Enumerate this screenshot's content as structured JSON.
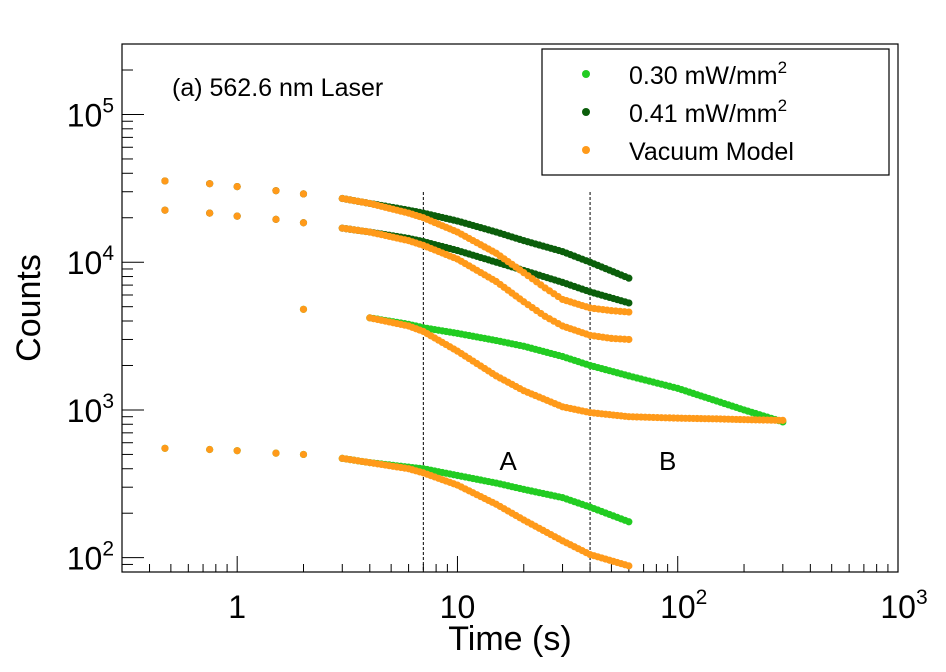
{
  "chart_data": {
    "type": "scatter",
    "title": "(a) 562.6 nm Laser",
    "xlabel": "Time (s)",
    "ylabel": "Counts",
    "xscale": "log",
    "yscale": "log",
    "xlim": [
      0.3,
      1000
    ],
    "ylim": [
      80,
      300000
    ],
    "x_ticks": [
      {
        "value": 1,
        "base": "1",
        "exp": ""
      },
      {
        "value": 10,
        "base": "10",
        "exp": ""
      },
      {
        "value": 100,
        "base": "10",
        "exp": "2"
      },
      {
        "value": 1000,
        "base": "10",
        "exp": "3"
      }
    ],
    "y_ticks": [
      {
        "value": 100,
        "base": "10",
        "exp": "2"
      },
      {
        "value": 1000,
        "base": "10",
        "exp": "3"
      },
      {
        "value": 10000,
        "base": "10",
        "exp": "4"
      },
      {
        "value": 100000,
        "base": "10",
        "exp": "5"
      }
    ],
    "legend": {
      "placement": "top-right",
      "entries": [
        {
          "label": "0.30 mW/mm",
          "sup": "2",
          "color": "#22cc22"
        },
        {
          "label": "0.41 mW/mm",
          "sup": "2",
          "color": "#0b5e0b"
        },
        {
          "label": "Vacuum Model",
          "sup": "",
          "color": "#ff9a1a"
        }
      ]
    },
    "vlines": [
      7,
      40
    ],
    "annotations": [
      {
        "text": "A",
        "x": 17,
        "y": 470
      },
      {
        "text": "B",
        "x": 90,
        "y": 470
      }
    ],
    "series": [
      {
        "name": "0.30 mW/mm²",
        "color": "#22cc22",
        "curves": [
          {
            "x": [
              2,
              4,
              6,
              7,
              10,
              15,
              20,
              30,
              40,
              60,
              100,
              150,
              200,
              300
            ],
            "y": [
              4800,
              4200,
              3800,
              3600,
              3300,
              2950,
              2700,
              2300,
              2000,
              1700,
              1400,
              1150,
              1000,
              830
            ]
          },
          {
            "x": [
              0.47,
              0.75,
              1,
              1.5,
              2,
              3,
              4,
              6,
              7,
              10,
              15,
              20,
              30,
              40,
              60
            ],
            "y": [
              550,
              540,
              530,
              510,
              500,
              470,
              440,
              410,
              400,
              360,
              320,
              290,
              255,
              220,
              175
            ]
          }
        ]
      },
      {
        "name": "0.41 mW/mm²",
        "color": "#0b5e0b",
        "curves": [
          {
            "x": [
              0.47,
              0.75,
              1,
              1.5,
              2,
              3,
              4,
              6,
              7,
              10,
              15,
              20,
              30,
              40,
              60
            ],
            "y": [
              35500,
              34000,
              32500,
              30500,
              29000,
              27000,
              25000,
              22500,
              21500,
              19000,
              16000,
              14000,
              11800,
              10000,
              7800
            ]
          },
          {
            "x": [
              0.47,
              0.75,
              1,
              1.5,
              2,
              3,
              4,
              6,
              7,
              10,
              15,
              20,
              30,
              40,
              60
            ],
            "y": [
              22500,
              21500,
              20500,
              19500,
              18500,
              17000,
              16000,
              14500,
              13800,
              12000,
              10000,
              8800,
              7300,
              6300,
              5300
            ]
          }
        ]
      },
      {
        "name": "Vacuum Model",
        "color": "#ff9a1a",
        "curves": [
          {
            "x": [
              0.47,
              0.75,
              1,
              1.5,
              2,
              3,
              4,
              6,
              7,
              10,
              15,
              20,
              25,
              30,
              40,
              50,
              60
            ],
            "y": [
              35500,
              34000,
              32500,
              30500,
              29000,
              27000,
              25000,
              21500,
              20000,
              16000,
              11500,
              8500,
              6700,
              5600,
              4900,
              4700,
              4600
            ]
          },
          {
            "x": [
              0.47,
              0.75,
              1,
              1.5,
              2,
              3,
              4,
              6,
              7,
              10,
              15,
              20,
              25,
              30,
              40,
              50,
              60
            ],
            "y": [
              22500,
              21500,
              20500,
              19500,
              18500,
              17000,
              16000,
              14000,
              13000,
              10500,
              7400,
              5400,
              4300,
              3700,
              3200,
              3050,
              3000
            ]
          },
          {
            "x": [
              2,
              4,
              6,
              7,
              10,
              15,
              20,
              30,
              40,
              60,
              100,
              150,
              200,
              300
            ],
            "y": [
              4800,
              4200,
              3700,
              3400,
              2500,
              1700,
              1350,
              1050,
              960,
              900,
              880,
              870,
              860,
              850
            ]
          },
          {
            "x": [
              0.47,
              0.75,
              1,
              1.5,
              2,
              3,
              4,
              6,
              7,
              10,
              15,
              20,
              30,
              40,
              60
            ],
            "y": [
              550,
              540,
              530,
              510,
              500,
              470,
              440,
              400,
              375,
              310,
              230,
              180,
              130,
              105,
              88
            ]
          }
        ]
      }
    ]
  }
}
